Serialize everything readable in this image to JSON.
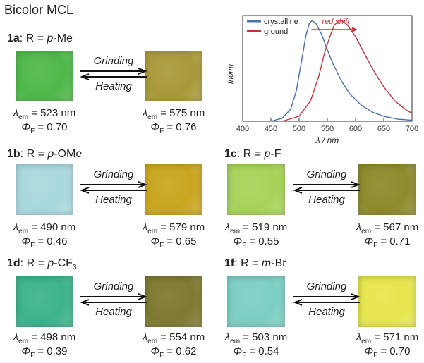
{
  "figure_title": "Bicolor MCL",
  "arrow_labels": {
    "forward": "Grinding",
    "backward": "Heating"
  },
  "lambda_symbol": "λ",
  "lambda_sub": "em",
  "phi_symbol": "Φ",
  "phi_sub": "F",
  "compounds": [
    {
      "id": "1a",
      "label": "R = p-Me",
      "prefix": "R = ",
      "italic": "p",
      "rest": "-Me",
      "crystalline": {
        "lambda": "= 523 nm",
        "phi": "= 0.70",
        "color": "#4fb84a"
      },
      "ground": {
        "lambda": "= 575 nm",
        "phi": "= 0.76",
        "color": "#a99a3a"
      }
    },
    {
      "id": "1b",
      "label": "R = p-OMe",
      "prefix": "R = ",
      "italic": "p",
      "rest": "-OMe",
      "crystalline": {
        "lambda": "= 490 nm",
        "phi": "= 0.46",
        "color": "#a9d8de"
      },
      "ground": {
        "lambda": "= 579 nm",
        "phi": "= 0.65",
        "color": "#c9a621"
      }
    },
    {
      "id": "1c",
      "label": "R = p-F",
      "prefix": "R = ",
      "italic": "p",
      "rest": "-F",
      "crystalline": {
        "lambda": "= 519 nm",
        "phi": "= 0.55",
        "color": "#a6d45a"
      },
      "ground": {
        "lambda": "= 567 nm",
        "phi": "= 0.71",
        "color": "#8f8a2c"
      }
    },
    {
      "id": "1d",
      "label": "R = p-CF3",
      "prefix": "R = ",
      "italic": "p",
      "rest": "-CF",
      "sub": "3",
      "crystalline": {
        "lambda": "= 498 nm",
        "phi": "= 0.39",
        "color": "#3db38c"
      },
      "ground": {
        "lambda": "= 554 nm",
        "phi": "= 0.62",
        "color": "#7e7a32"
      }
    },
    {
      "id": "1f",
      "label": "R = m-Br",
      "prefix": "R = ",
      "italic": "m",
      "rest": "-Br",
      "crystalline": {
        "lambda": "= 503 nm",
        "phi": "= 0.54",
        "color": "#7dcfc4"
      },
      "ground": {
        "lambda": "= 571 nm",
        "phi": "= 0.70",
        "color": "#e6e64e"
      }
    }
  ],
  "chart_data": {
    "type": "line",
    "title": "",
    "xlabel": "λ / nm",
    "ylabel": "Inorm",
    "xlim": [
      400,
      700
    ],
    "x_ticks": [
      400,
      450,
      500,
      550,
      600,
      650,
      700
    ],
    "ylim": [
      0,
      1.05
    ],
    "grid": false,
    "legend_position": "top-left",
    "annotation": "red shift",
    "series": [
      {
        "name": "crystalline",
        "color": "#4a6fa8",
        "x": [
          450,
          470,
          485,
          495,
          505,
          512,
          518,
          523,
          530,
          540,
          550,
          560,
          575,
          590,
          610,
          630,
          650,
          675,
          700
        ],
        "y": [
          0.0,
          0.03,
          0.12,
          0.3,
          0.62,
          0.85,
          0.97,
          1.0,
          0.97,
          0.86,
          0.71,
          0.57,
          0.4,
          0.27,
          0.16,
          0.09,
          0.05,
          0.02,
          0.01
        ]
      },
      {
        "name": "ground",
        "color": "#c0353a",
        "x": [
          470,
          500,
          520,
          535,
          545,
          555,
          562,
          570,
          575,
          585,
          600,
          615,
          630,
          650,
          670,
          690,
          700
        ],
        "y": [
          0.0,
          0.05,
          0.2,
          0.45,
          0.68,
          0.85,
          0.95,
          1.0,
          1.0,
          0.96,
          0.84,
          0.68,
          0.52,
          0.34,
          0.2,
          0.11,
          0.08
        ]
      }
    ]
  }
}
